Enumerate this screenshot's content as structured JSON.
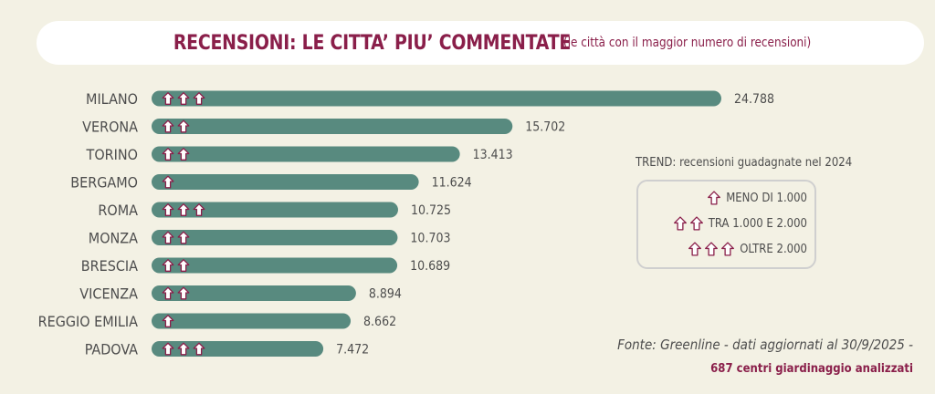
{
  "title": {
    "main": "RECENSIONI: LE CITTA’ PIU’ COMMENTATE",
    "sub": "(le città con il maggior numero di recensioni)"
  },
  "colors": {
    "bar": "#588a7f",
    "accent": "#8a1f4a",
    "text": "#4d4d4d",
    "background": "#f3f1e4"
  },
  "chart_data": {
    "type": "bar",
    "orientation": "horizontal",
    "categories": [
      "MILANO",
      "VERONA",
      "TORINO",
      "BERGAMO",
      "ROMA",
      "MONZA",
      "BRESCIA",
      "VICENZA",
      "REGGIO EMILIA",
      "PADOVA"
    ],
    "values": [
      24788,
      15702,
      13413,
      11624,
      10725,
      10703,
      10689,
      8894,
      8662,
      7472
    ],
    "value_labels": [
      "24.788",
      "15.702",
      "13.413",
      "11.624",
      "10.725",
      "10.703",
      "10.689",
      "8.894",
      "8.662",
      "7.472"
    ],
    "trend": [
      3,
      2,
      2,
      1,
      3,
      2,
      2,
      2,
      1,
      3
    ],
    "xlim": [
      0,
      24788
    ],
    "grid": false
  },
  "legend": {
    "title": "TREND: recensioni guadagnate nel 2024",
    "items": [
      {
        "arrows": 1,
        "label": "MENO DI 1.000"
      },
      {
        "arrows": 2,
        "label": "TRA 1.000 E 2.000"
      },
      {
        "arrows": 3,
        "label": "OLTRE 2.000"
      }
    ]
  },
  "source": {
    "line": "Fonte: Greenline - dati aggiornati al 30/9/2025 -",
    "sub": "687 centri giardinaggio analizzati"
  }
}
